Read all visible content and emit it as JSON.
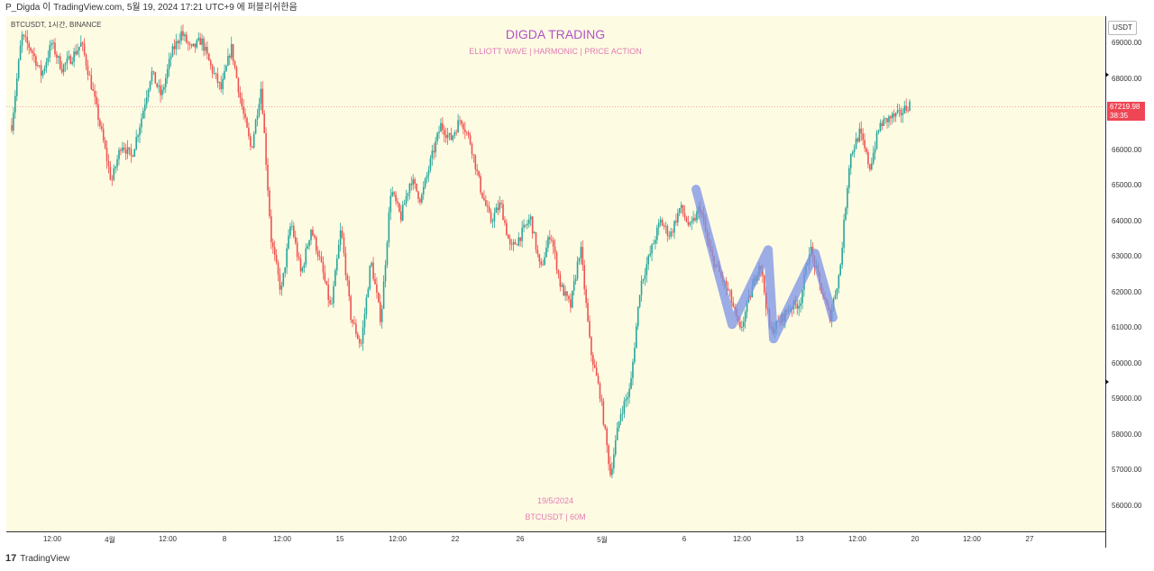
{
  "header": {
    "attribution": "P_Digda 이 TradingView.com, 5월 19, 2024 17:21 UTC+9 에 퍼블리쉬한음"
  },
  "symbol_label": "BTCUSDT, 1시간, BINANCE",
  "watermark": {
    "title": "DIGDA TRADING",
    "subtitle": "ELLIOTT WAVE   |   HARMONIC   |   PRICE ACTION",
    "date": "19/5/2024",
    "symbol": "BTCUSDT | 60M"
  },
  "price_axis": {
    "currency_button": "USDT",
    "current_price": "67219.98",
    "countdown": "38:35"
  },
  "footer": {
    "brand": "TradingView",
    "logo": "17"
  },
  "colors": {
    "background": "#fefbe3",
    "up": "#26a69a",
    "down": "#ef5350",
    "wave_path": "#7b93e6",
    "price_tag": "#ef4655"
  },
  "chart_data": {
    "type": "candlestick",
    "title": "DIGDA TRADING",
    "symbol": "BTCUSDT",
    "interval": "60M",
    "exchange": "BINANCE",
    "ylim": [
      55600,
      69500
    ],
    "y_ticks": [
      "69000.00",
      "68000.00",
      "67000.00",
      "66000.00",
      "65000.00",
      "64000.00",
      "63000.00",
      "62000.00",
      "61000.00",
      "60000.00",
      "59000.00",
      "58000.00",
      "57000.00",
      "56000.00"
    ],
    "x_ticks": [
      "12:00",
      "4월",
      "12:00",
      "8",
      "12:00",
      "15",
      "12:00",
      "22",
      "26",
      "5월",
      "6",
      "12:00",
      "13",
      "12:00",
      "20",
      "12:00",
      "27"
    ],
    "last_price": 67219.98,
    "price_path": [
      [
        0,
        66700
      ],
      [
        2,
        69200
      ],
      [
        4,
        68800
      ],
      [
        6,
        68100
      ],
      [
        8,
        69000
      ],
      [
        10,
        68300
      ],
      [
        12,
        68600
      ],
      [
        14,
        69000
      ],
      [
        16,
        67800
      ],
      [
        18,
        66500
      ],
      [
        20,
        65100
      ],
      [
        22,
        66200
      ],
      [
        24,
        65800
      ],
      [
        26,
        66900
      ],
      [
        28,
        68200
      ],
      [
        30,
        67500
      ],
      [
        32,
        68700
      ],
      [
        34,
        69300
      ],
      [
        36,
        68800
      ],
      [
        38,
        69100
      ],
      [
        40,
        68300
      ],
      [
        42,
        67700
      ],
      [
        44,
        68900
      ],
      [
        46,
        67300
      ],
      [
        48,
        66000
      ],
      [
        50,
        67800
      ],
      [
        52,
        63500
      ],
      [
        54,
        62000
      ],
      [
        56,
        64000
      ],
      [
        58,
        62500
      ],
      [
        60,
        63800
      ],
      [
        62,
        62800
      ],
      [
        64,
        61500
      ],
      [
        66,
        63800
      ],
      [
        68,
        61300
      ],
      [
        70,
        60500
      ],
      [
        72,
        62900
      ],
      [
        74,
        61200
      ],
      [
        76,
        64900
      ],
      [
        78,
        64100
      ],
      [
        80,
        65200
      ],
      [
        82,
        64600
      ],
      [
        84,
        65700
      ],
      [
        86,
        66700
      ],
      [
        88,
        66300
      ],
      [
        90,
        66900
      ],
      [
        92,
        66200
      ],
      [
        94,
        64900
      ],
      [
        96,
        64000
      ],
      [
        98,
        64500
      ],
      [
        100,
        63200
      ],
      [
        102,
        63600
      ],
      [
        104,
        64100
      ],
      [
        106,
        62600
      ],
      [
        108,
        63700
      ],
      [
        110,
        62200
      ],
      [
        112,
        61600
      ],
      [
        114,
        63300
      ],
      [
        116,
        60400
      ],
      [
        118,
        59100
      ],
      [
        120,
        56900
      ],
      [
        122,
        58600
      ],
      [
        124,
        59300
      ],
      [
        126,
        62200
      ],
      [
        128,
        63100
      ],
      [
        130,
        64000
      ],
      [
        132,
        63600
      ],
      [
        134,
        64400
      ],
      [
        136,
        63800
      ],
      [
        138,
        64400
      ],
      [
        140,
        63100
      ],
      [
        142,
        62500
      ],
      [
        144,
        61900
      ],
      [
        146,
        60900
      ],
      [
        148,
        61900
      ],
      [
        150,
        62900
      ],
      [
        152,
        60900
      ],
      [
        154,
        61200
      ],
      [
        156,
        61600
      ],
      [
        158,
        61700
      ],
      [
        160,
        63300
      ],
      [
        162,
        62200
      ],
      [
        164,
        61300
      ],
      [
        166,
        62600
      ],
      [
        168,
        65800
      ],
      [
        170,
        66500
      ],
      [
        172,
        65500
      ],
      [
        174,
        66700
      ],
      [
        176,
        66900
      ],
      [
        178,
        67000
      ],
      [
        180,
        67300
      ]
    ],
    "annotation_path": [
      [
        772,
        64900
      ],
      [
        812,
        61100
      ],
      [
        852,
        63200
      ],
      [
        858,
        60700
      ],
      [
        904,
        63100
      ],
      [
        924,
        61300
      ]
    ]
  }
}
